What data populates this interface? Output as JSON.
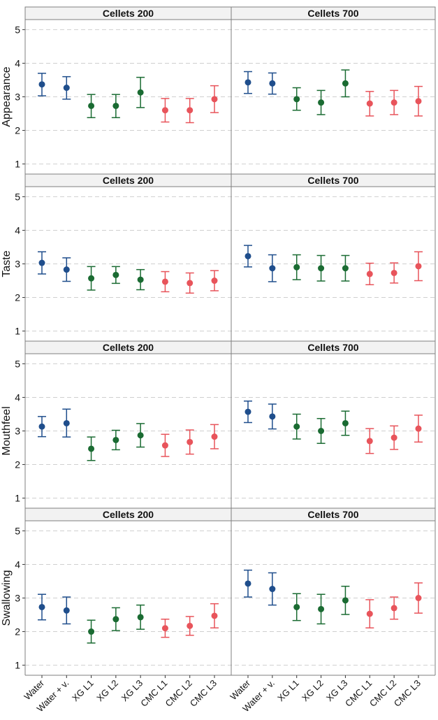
{
  "chart_data": {
    "type": "interval",
    "categories": [
      "Water",
      "Water + v.",
      "XG L1",
      "XG L2",
      "XG L3",
      "CMC L1",
      "CMC L2",
      "CMC L3"
    ],
    "category_colors": [
      "#1f4e8c",
      "#1f4e8c",
      "#1a6b32",
      "#1a6b32",
      "#1a6b32",
      "#e8545b",
      "#e8545b",
      "#e8545b"
    ],
    "columns": [
      "Cellets 200",
      "Cellets 700"
    ],
    "rows": [
      "Appearance",
      "Taste",
      "Mouthfeel",
      "Swallowing"
    ],
    "yticks": [
      1,
      2,
      3,
      4,
      5
    ],
    "ylim": [
      0.7,
      5.3
    ],
    "grid": "dashed-horizontal",
    "panels": [
      {
        "row": "Appearance",
        "column": "Cellets 200",
        "means": [
          3.37,
          3.27,
          2.73,
          2.73,
          3.13,
          2.6,
          2.6,
          2.93
        ],
        "lower": [
          3.03,
          2.93,
          2.38,
          2.38,
          2.68,
          2.25,
          2.23,
          2.53
        ],
        "upper": [
          3.7,
          3.6,
          3.07,
          3.07,
          3.58,
          2.95,
          2.95,
          3.33
        ]
      },
      {
        "row": "Appearance",
        "column": "Cellets 700",
        "means": [
          3.43,
          3.4,
          2.93,
          2.83,
          3.4,
          2.8,
          2.83,
          2.87
        ],
        "lower": [
          3.1,
          3.08,
          2.6,
          2.47,
          3.0,
          2.43,
          2.47,
          2.43
        ],
        "upper": [
          3.75,
          3.71,
          3.27,
          3.19,
          3.8,
          3.16,
          3.19,
          3.31
        ]
      },
      {
        "row": "Taste",
        "column": "Cellets 200",
        "means": [
          3.03,
          2.83,
          2.57,
          2.67,
          2.53,
          2.47,
          2.43,
          2.5
        ],
        "lower": [
          2.7,
          2.48,
          2.22,
          2.42,
          2.23,
          2.17,
          2.13,
          2.2
        ],
        "upper": [
          3.36,
          3.18,
          2.92,
          2.92,
          2.83,
          2.77,
          2.73,
          2.8
        ]
      },
      {
        "row": "Taste",
        "column": "Cellets 700",
        "means": [
          3.23,
          2.87,
          2.9,
          2.87,
          2.87,
          2.7,
          2.73,
          2.93
        ],
        "lower": [
          2.91,
          2.47,
          2.53,
          2.49,
          2.49,
          2.38,
          2.43,
          2.5
        ],
        "upper": [
          3.55,
          3.27,
          3.27,
          3.25,
          3.25,
          3.02,
          3.03,
          3.36
        ]
      },
      {
        "row": "Mouthfeel",
        "column": "Cellets 200",
        "means": [
          3.13,
          3.23,
          2.47,
          2.73,
          2.87,
          2.57,
          2.67,
          2.83
        ],
        "lower": [
          2.83,
          2.82,
          2.12,
          2.44,
          2.52,
          2.24,
          2.31,
          2.47
        ],
        "upper": [
          3.43,
          3.65,
          2.82,
          3.02,
          3.22,
          2.9,
          3.03,
          3.19
        ]
      },
      {
        "row": "Mouthfeel",
        "column": "Cellets 700",
        "means": [
          3.57,
          3.43,
          3.13,
          3.0,
          3.23,
          2.7,
          2.8,
          3.07
        ],
        "lower": [
          3.25,
          3.06,
          2.76,
          2.63,
          2.87,
          2.33,
          2.45,
          2.67
        ],
        "upper": [
          3.89,
          3.8,
          3.5,
          3.37,
          3.59,
          3.07,
          3.15,
          3.47
        ]
      },
      {
        "row": "Swallowing",
        "column": "Cellets 200",
        "means": [
          2.73,
          2.63,
          2.0,
          2.37,
          2.43,
          2.1,
          2.17,
          2.47
        ],
        "lower": [
          2.35,
          2.23,
          1.66,
          2.03,
          2.07,
          1.83,
          1.89,
          2.11
        ],
        "upper": [
          3.11,
          3.03,
          2.34,
          2.71,
          2.79,
          2.37,
          2.45,
          2.83
        ]
      },
      {
        "row": "Swallowing",
        "column": "Cellets 700",
        "means": [
          3.43,
          3.27,
          2.73,
          2.67,
          2.93,
          2.53,
          2.7,
          3.0
        ],
        "lower": [
          3.03,
          2.79,
          2.33,
          2.23,
          2.51,
          2.11,
          2.37,
          2.55
        ],
        "upper": [
          3.83,
          3.75,
          3.13,
          3.11,
          3.35,
          2.95,
          3.03,
          3.45
        ]
      }
    ]
  }
}
